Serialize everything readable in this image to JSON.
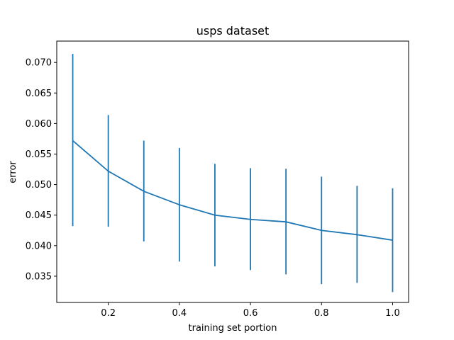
{
  "chart_data": {
    "type": "line",
    "title": "usps dataset",
    "xlabel": "training set portion",
    "ylabel": "error",
    "xlim": [
      0.055,
      1.045
    ],
    "ylim": [
      0.0307,
      0.0735
    ],
    "xticks": [
      0.2,
      0.4,
      0.6,
      0.8,
      1.0
    ],
    "xtick_labels": [
      "0.2",
      "0.4",
      "0.6",
      "0.8",
      "1.0"
    ],
    "yticks": [
      0.035,
      0.04,
      0.045,
      0.05,
      0.055,
      0.06,
      0.065,
      0.07
    ],
    "ytick_labels": [
      "0.035",
      "0.040",
      "0.045",
      "0.050",
      "0.055",
      "0.060",
      "0.065",
      "0.070"
    ],
    "grid": false,
    "series": [
      {
        "color": "#1f77b4",
        "x": [
          0.1,
          0.2,
          0.3,
          0.4,
          0.5,
          0.6,
          0.7,
          0.8,
          0.9,
          1.0
        ],
        "y": [
          0.0572,
          0.0522,
          0.0489,
          0.0467,
          0.045,
          0.0443,
          0.0439,
          0.0425,
          0.0418,
          0.0409
        ],
        "err_low": [
          0.0432,
          0.0431,
          0.0407,
          0.0374,
          0.0366,
          0.036,
          0.0353,
          0.0337,
          0.0339,
          0.0324
        ],
        "err_high": [
          0.0714,
          0.0614,
          0.0572,
          0.056,
          0.0534,
          0.0527,
          0.0526,
          0.0513,
          0.0498,
          0.0494
        ]
      }
    ]
  }
}
